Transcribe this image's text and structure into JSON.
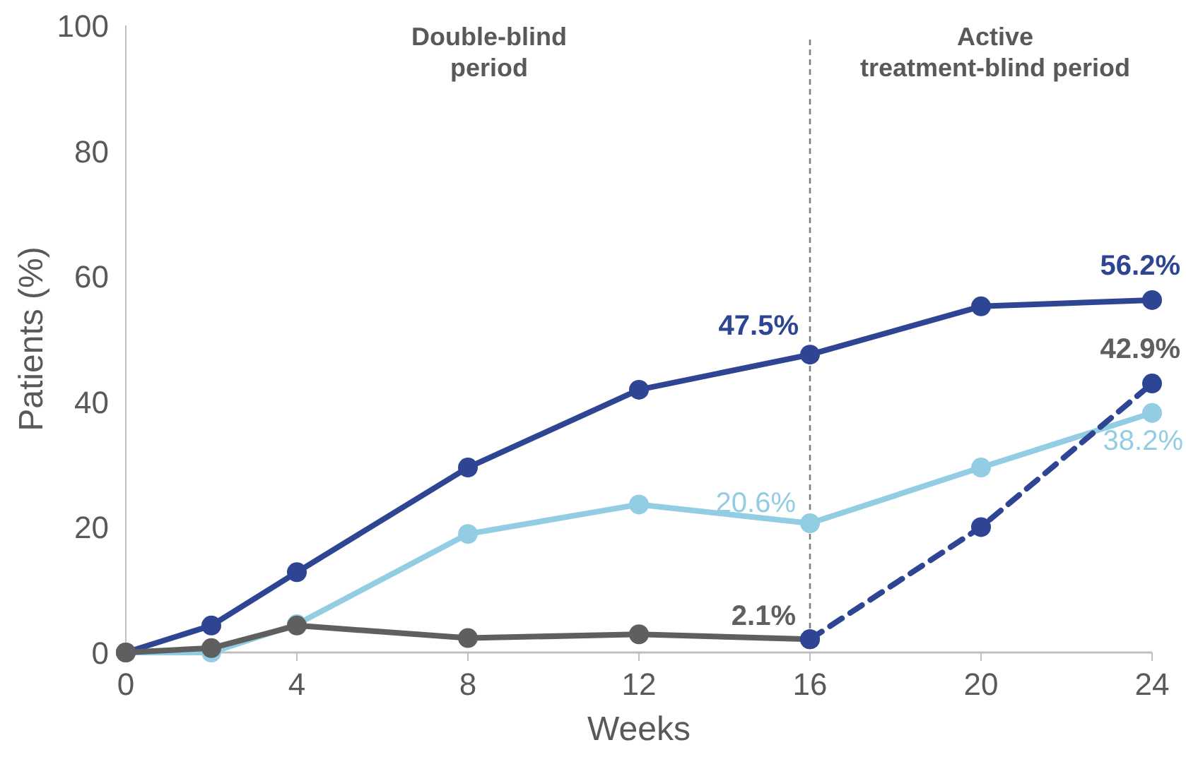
{
  "chart_data": {
    "type": "line",
    "xlabel": "Weeks",
    "ylabel": "Patients (%)",
    "xlim": [
      0,
      24
    ],
    "xticks": [
      0,
      4,
      8,
      12,
      16,
      20,
      24
    ],
    "ylim": [
      0,
      100
    ],
    "yticks": [
      0,
      20,
      40,
      60,
      80,
      100
    ],
    "grid": false,
    "marker": "circle",
    "series": [
      {
        "color": "#2e4593",
        "x": [
          0,
          2,
          4,
          8,
          12,
          16,
          20,
          24
        ],
        "values": [
          0,
          4.3,
          12.8,
          29.5,
          41.9,
          47.5,
          55.2,
          56.2
        ],
        "value_labels": [
          null,
          null,
          null,
          null,
          null,
          "47.5%",
          null,
          "56.2%"
        ]
      },
      {
        "color": "#92cde3",
        "x": [
          0,
          2,
          4,
          8,
          12,
          16,
          20,
          24
        ],
        "values": [
          0,
          0,
          4.5,
          18.9,
          23.6,
          20.6,
          29.5,
          38.2
        ],
        "value_labels": [
          null,
          null,
          null,
          null,
          null,
          "20.6%",
          null,
          "38.2%"
        ]
      },
      {
        "color": "#5f5f5f",
        "x": [
          0,
          2,
          4,
          8,
          12,
          16
        ],
        "values": [
          0,
          0.7,
          4.3,
          2.3,
          2.9,
          2.1
        ],
        "value_labels": [
          null,
          null,
          null,
          null,
          null,
          "2.1%"
        ]
      },
      {
        "color": "#2e4593",
        "line_style": "dashed",
        "x": [
          16,
          20,
          24
        ],
        "values": [
          2.1,
          20,
          42.9
        ],
        "value_labels": [
          null,
          null,
          "42.9%"
        ]
      }
    ],
    "ref_lines": [
      {
        "axis": "x",
        "value": 16,
        "color": "#7f7f7f",
        "line_style": "dashed"
      }
    ],
    "annotations": [
      "Double-blind\nperiod",
      "Active\ntreatment-blind period"
    ]
  }
}
